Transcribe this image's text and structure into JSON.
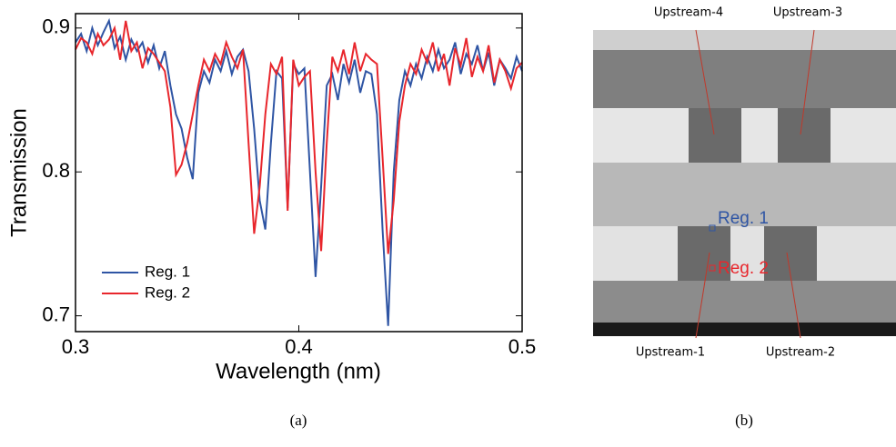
{
  "chart_data": {
    "type": "line",
    "xlabel": "Wavelength (nm)",
    "ylabel": "Transmission",
    "caption": "(a)",
    "xlim": [
      0.3,
      0.5
    ],
    "xticks": [
      0.3,
      0.4,
      0.5
    ],
    "ylim": [
      0.689,
      0.91
    ],
    "yticks": [
      0.7,
      0.8,
      0.9
    ],
    "legend": "lower left",
    "x": [
      0.3,
      0.3025,
      0.305,
      0.3075,
      0.31,
      0.3125,
      0.315,
      0.3175,
      0.32,
      0.3225,
      0.325,
      0.3275,
      0.33,
      0.3325,
      0.335,
      0.3375,
      0.34,
      0.3425,
      0.345,
      0.3475,
      0.35,
      0.3525,
      0.355,
      0.3575,
      0.36,
      0.3625,
      0.365,
      0.3675,
      0.37,
      0.3725,
      0.375,
      0.3775,
      0.38,
      0.3825,
      0.385,
      0.3875,
      0.39,
      0.3925,
      0.395,
      0.3975,
      0.4,
      0.4025,
      0.405,
      0.4075,
      0.41,
      0.4125,
      0.415,
      0.4175,
      0.42,
      0.4225,
      0.425,
      0.4275,
      0.43,
      0.4325,
      0.435,
      0.4375,
      0.44,
      0.4425,
      0.445,
      0.4475,
      0.45,
      0.4525,
      0.455,
      0.4575,
      0.46,
      0.4625,
      0.465,
      0.4675,
      0.47,
      0.4725,
      0.475,
      0.4775,
      0.48,
      0.4825,
      0.485,
      0.4875,
      0.49,
      0.4925,
      0.495,
      0.4975,
      0.5
    ],
    "series": [
      {
        "name": "Reg. 1",
        "color": "#2f55a4",
        "values": [
          0.89,
          0.896,
          0.884,
          0.9,
          0.888,
          0.897,
          0.905,
          0.886,
          0.894,
          0.878,
          0.892,
          0.884,
          0.89,
          0.876,
          0.888,
          0.872,
          0.884,
          0.86,
          0.84,
          0.83,
          0.81,
          0.795,
          0.855,
          0.87,
          0.862,
          0.878,
          0.87,
          0.884,
          0.868,
          0.88,
          0.885,
          0.87,
          0.83,
          0.78,
          0.76,
          0.82,
          0.87,
          0.865,
          0.775,
          0.875,
          0.868,
          0.872,
          0.8,
          0.727,
          0.79,
          0.86,
          0.868,
          0.85,
          0.875,
          0.862,
          0.878,
          0.855,
          0.87,
          0.868,
          0.84,
          0.76,
          0.693,
          0.8,
          0.85,
          0.87,
          0.86,
          0.875,
          0.865,
          0.88,
          0.87,
          0.885,
          0.872,
          0.878,
          0.89,
          0.868,
          0.882,
          0.875,
          0.888,
          0.87,
          0.883,
          0.86,
          0.878,
          0.872,
          0.865,
          0.88,
          0.87
        ]
      },
      {
        "name": "Reg. 2",
        "color": "#e8262c",
        "values": [
          0.885,
          0.893,
          0.89,
          0.882,
          0.896,
          0.888,
          0.892,
          0.9,
          0.878,
          0.905,
          0.884,
          0.89,
          0.872,
          0.886,
          0.882,
          0.876,
          0.87,
          0.845,
          0.798,
          0.805,
          0.82,
          0.84,
          0.86,
          0.878,
          0.87,
          0.882,
          0.875,
          0.89,
          0.88,
          0.872,
          0.885,
          0.82,
          0.757,
          0.79,
          0.84,
          0.875,
          0.868,
          0.88,
          0.773,
          0.878,
          0.86,
          0.866,
          0.87,
          0.8,
          0.745,
          0.82,
          0.88,
          0.87,
          0.885,
          0.868,
          0.89,
          0.87,
          0.882,
          0.878,
          0.875,
          0.81,
          0.743,
          0.78,
          0.835,
          0.86,
          0.875,
          0.868,
          0.885,
          0.876,
          0.89,
          0.87,
          0.882,
          0.86,
          0.886,
          0.874,
          0.893,
          0.866,
          0.88,
          0.87,
          0.888,
          0.862,
          0.878,
          0.87,
          0.858,
          0.872,
          0.876
        ]
      }
    ]
  },
  "image": {
    "caption": "(b)",
    "labels": [
      "Upstream-4",
      "Upstream-3",
      "Upstream-1",
      "Upstream-2"
    ],
    "regions": [
      "Reg. 1",
      "Reg. 2"
    ]
  }
}
